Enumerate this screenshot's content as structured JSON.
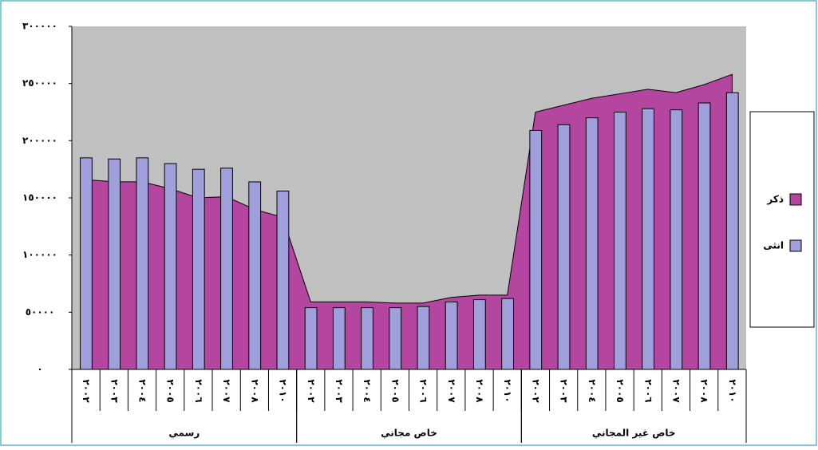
{
  "chart_data": {
    "type": "bar-area",
    "categories": [
      "٢٠٠٢",
      "٢٠٠٣",
      "٢٠٠٤",
      "٢٠٠٥",
      "٢٠٠٦",
      "٢٠٠٧",
      "٢٠٠٨",
      "٢٠١٠",
      "٢٠٠٢",
      "٢٠٠٣",
      "٢٠٠٤",
      "٢٠٠٥",
      "٢٠٠٦",
      "٢٠٠٧",
      "٢٠٠٨",
      "٢٠١٠",
      "٢٠٠٢",
      "٢٠٠٣",
      "٢٠٠٤",
      "٢٠٠٥",
      "٢٠٠٦",
      "٢٠٠٧",
      "٢٠٠٨",
      "٢٠١٠"
    ],
    "groups": [
      "رسمي",
      "خاص مجاني",
      "خاص غير المجاني"
    ],
    "series": [
      {
        "name": "ذكر",
        "kind": "area",
        "color": "#b5469f",
        "values": [
          166000,
          164000,
          164000,
          158000,
          150000,
          151000,
          140000,
          133000,
          59000,
          59000,
          59000,
          58000,
          58000,
          63000,
          65000,
          65000,
          225000,
          231000,
          237000,
          241000,
          245000,
          242000,
          249000,
          258000
        ]
      },
      {
        "name": "انثى",
        "kind": "bar",
        "color": "#9f9fdc",
        "values": [
          185000,
          184000,
          185000,
          180000,
          175000,
          176000,
          164000,
          156000,
          54000,
          54000,
          54000,
          54000,
          55000,
          59000,
          61000,
          62000,
          209000,
          214000,
          220000,
          225000,
          228000,
          227000,
          233000,
          242000
        ]
      }
    ],
    "ylim": [
      0,
      300000
    ],
    "yticks": [
      {
        "value": 0,
        "label": "٠"
      },
      {
        "value": 50000,
        "label": "٥٠٠٠٠"
      },
      {
        "value": 100000,
        "label": "١٠٠٠٠٠"
      },
      {
        "value": 150000,
        "label": "١٥٠٠٠٠"
      },
      {
        "value": 200000,
        "label": "٢٠٠٠٠٠"
      },
      {
        "value": 250000,
        "label": "٢٥٠٠٠٠"
      },
      {
        "value": 300000,
        "label": "٣٠٠٠٠٠"
      }
    ],
    "grid": false,
    "legend": "right"
  }
}
